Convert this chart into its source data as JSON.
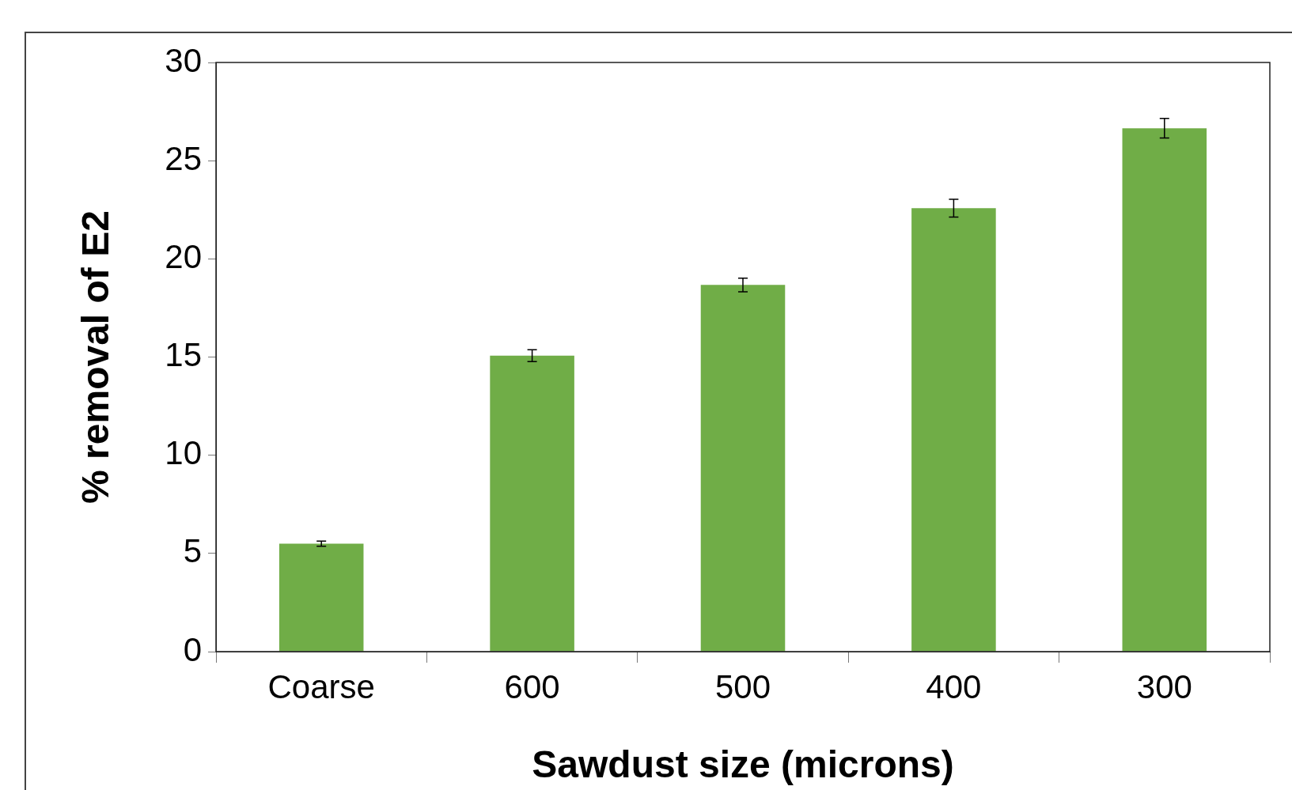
{
  "chart_data": {
    "type": "bar",
    "xlabel": "Sawdust size (microns)",
    "ylabel": "% removal of E2",
    "categories": [
      "Coarse",
      "600",
      "500",
      "400",
      "300"
    ],
    "values": [
      5.5,
      15.07,
      18.67,
      22.58,
      26.65
    ],
    "errors": [
      0.13,
      0.3,
      0.35,
      0.45,
      0.5
    ],
    "color": "#70ad47",
    "ylim": [
      0,
      30
    ],
    "yticks": [
      0,
      5,
      10,
      15,
      20,
      25,
      30
    ],
    "grid": false,
    "legend": false
  }
}
